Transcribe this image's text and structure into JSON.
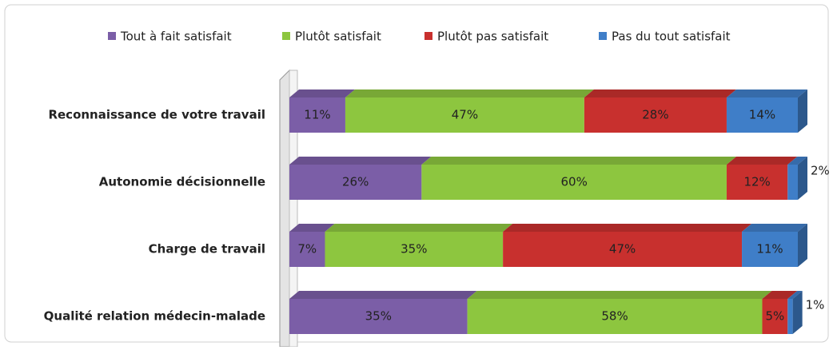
{
  "chart_data": {
    "type": "bar",
    "orientation": "horizontal",
    "stacked": true,
    "categories": [
      "Reconnaissance de votre travail",
      "Autonomie décisionnelle",
      "Charge de travail",
      "Qualité relation médecin-malade"
    ],
    "xlim": [
      0,
      100
    ],
    "legend": "top",
    "series": [
      {
        "name": "Tout à fait satisfait",
        "color": "#7b5ea7",
        "values": [
          11,
          26,
          7,
          35
        ],
        "value_labels": [
          "11%",
          "26%",
          "7%",
          "35%"
        ]
      },
      {
        "name": "Plutôt satisfait",
        "color": "#8dc63f",
        "values": [
          47,
          60,
          35,
          58
        ],
        "value_labels": [
          "47%",
          "60%",
          "35%",
          "58%"
        ]
      },
      {
        "name": "Plutôt pas satisfait",
        "color": "#c8302e",
        "values": [
          28,
          12,
          47,
          5
        ],
        "value_labels": [
          "28%",
          "12%",
          "47%",
          "5%"
        ]
      },
      {
        "name": "Pas du tout satisfait",
        "color": "#3f7ec8",
        "values": [
          14,
          2,
          11,
          1
        ],
        "value_labels": [
          "14%",
          "2%",
          "11%",
          "1%"
        ]
      }
    ]
  }
}
